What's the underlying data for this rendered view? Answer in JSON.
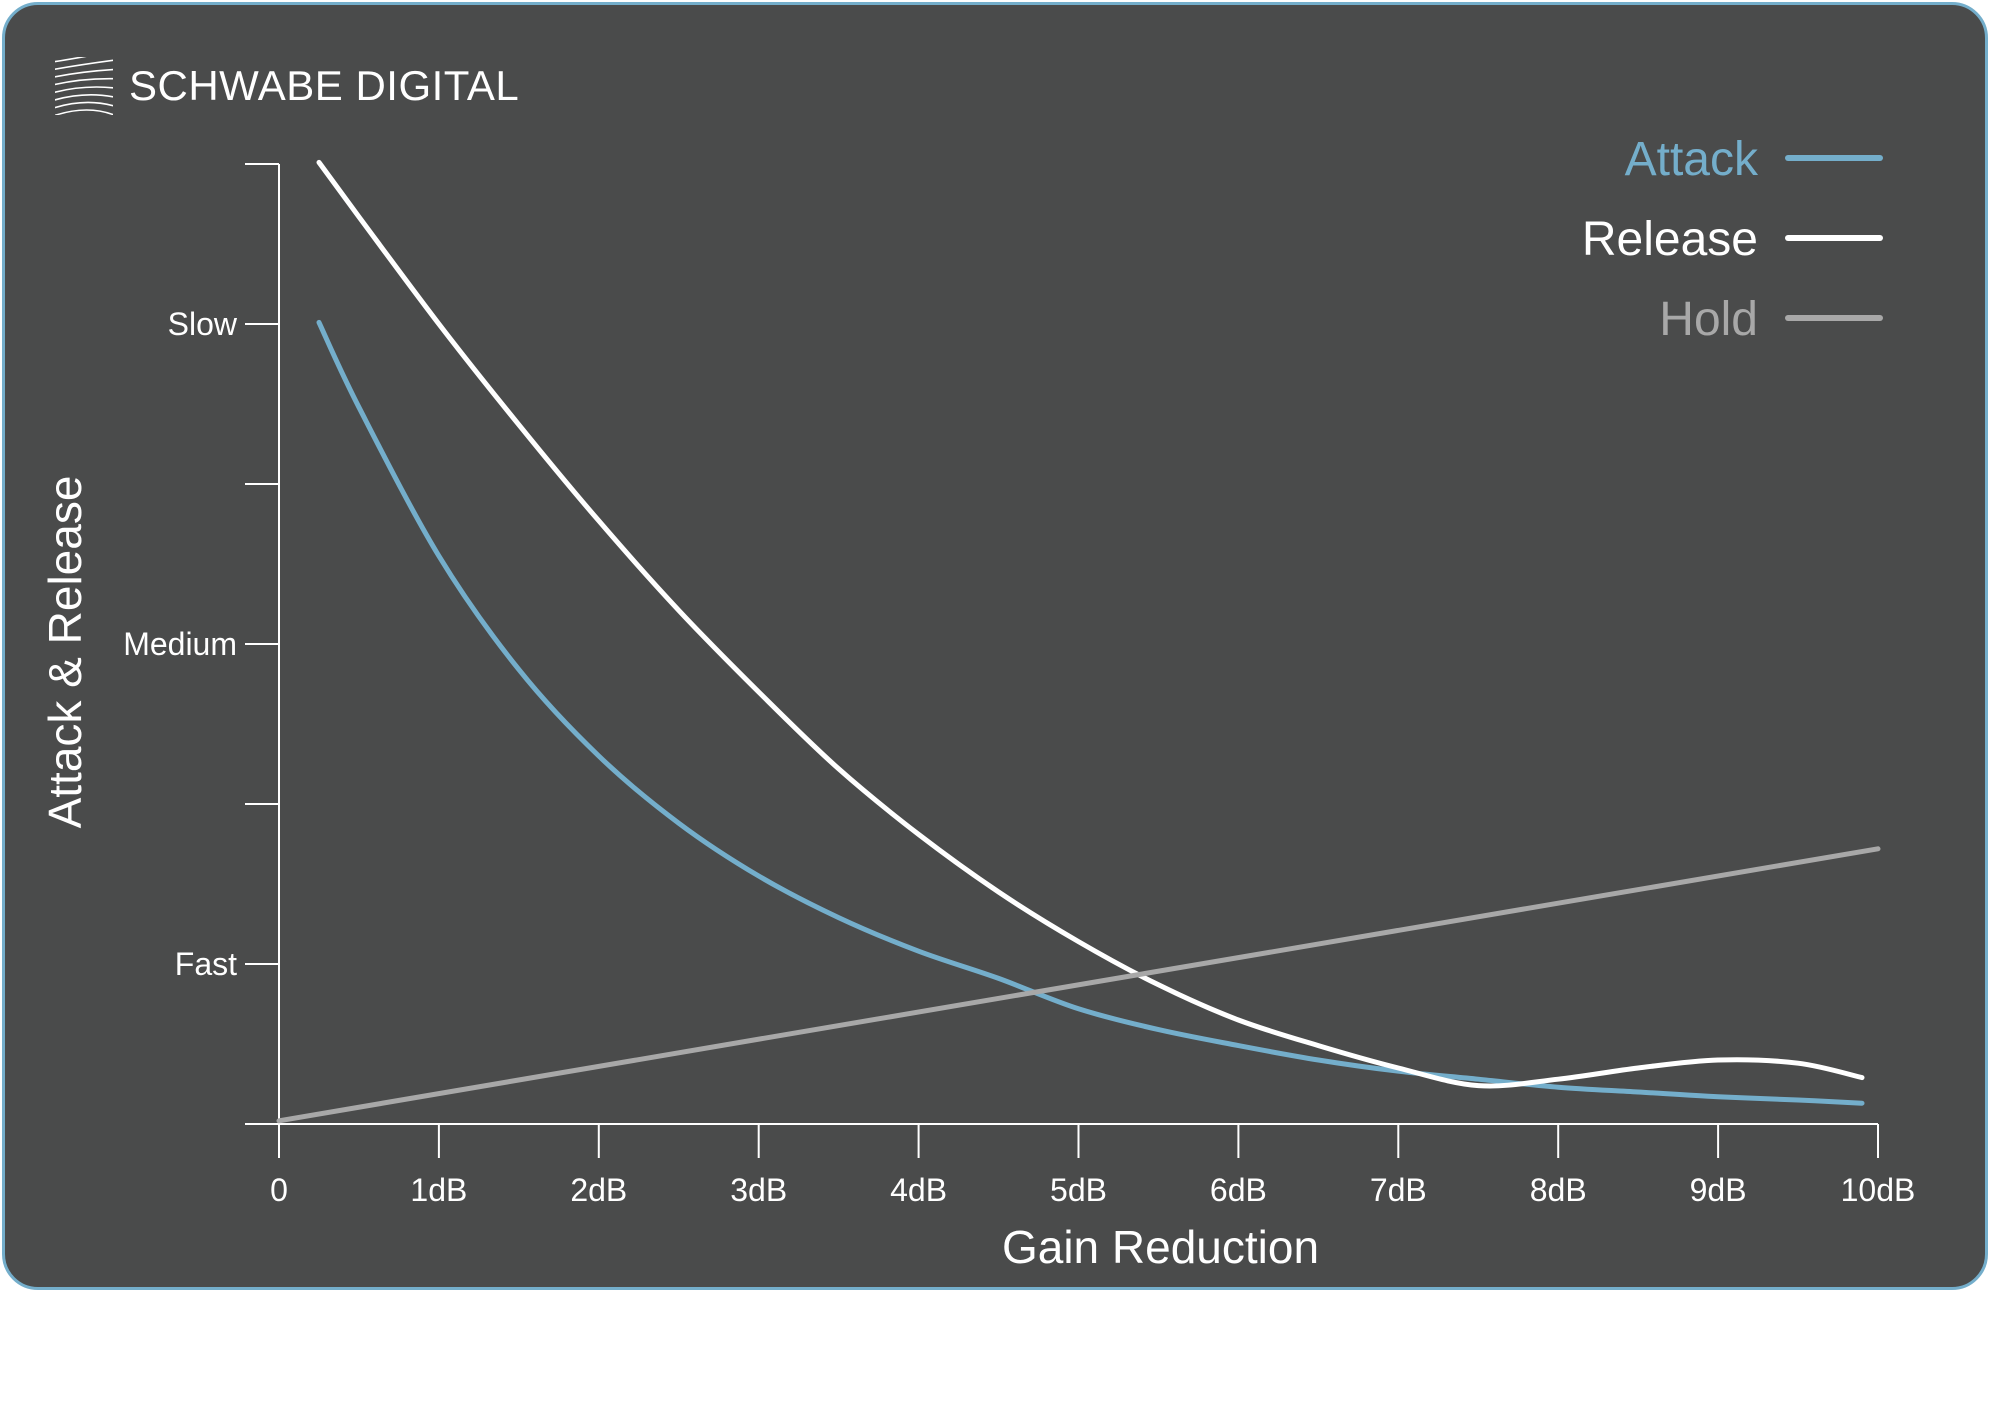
{
  "brand": {
    "name": "SCHWABE DIGITAL",
    "logo_icon": "wave-lines-logo-icon"
  },
  "colors": {
    "background": "#4a4b4b",
    "border": "#74aecb",
    "attack": "#74aecb",
    "release": "#ffffff",
    "hold": "#a8a8a8",
    "axis": "#ffffff"
  },
  "chart_data": {
    "type": "line",
    "title": "",
    "xlabel": "Gain Reduction",
    "ylabel": "Attack & Release",
    "xlim": [
      0,
      10
    ],
    "ylim": [
      0,
      6
    ],
    "x_ticks": [
      {
        "value": 0,
        "label": "0"
      },
      {
        "value": 1,
        "label": "1dB"
      },
      {
        "value": 2,
        "label": "2dB"
      },
      {
        "value": 3,
        "label": "3dB"
      },
      {
        "value": 4,
        "label": "4dB"
      },
      {
        "value": 5,
        "label": "5dB"
      },
      {
        "value": 6,
        "label": "6dB"
      },
      {
        "value": 7,
        "label": "7dB"
      },
      {
        "value": 8,
        "label": "8dB"
      },
      {
        "value": 9,
        "label": "9dB"
      },
      {
        "value": 10,
        "label": "10dB"
      }
    ],
    "y_ticks": [
      {
        "value": 0,
        "label": ""
      },
      {
        "value": 1,
        "label": "Fast"
      },
      {
        "value": 2,
        "label": ""
      },
      {
        "value": 3,
        "label": "Medium"
      },
      {
        "value": 4,
        "label": ""
      },
      {
        "value": 5,
        "label": "Slow"
      },
      {
        "value": 6,
        "label": ""
      }
    ],
    "grid": false,
    "legend_position": "top-right",
    "series": [
      {
        "name": "Attack",
        "color": "#74aecb",
        "x": [
          0.25,
          0.5,
          1,
          1.5,
          2,
          2.5,
          3,
          3.5,
          4,
          4.5,
          5,
          5.5,
          6,
          6.5,
          7,
          7.5,
          8,
          8.5,
          9,
          9.5,
          9.9
        ],
        "y": [
          5.01,
          4.48,
          3.55,
          2.84,
          2.3,
          1.88,
          1.55,
          1.29,
          1.08,
          0.91,
          0.72,
          0.59,
          0.49,
          0.4,
          0.33,
          0.28,
          0.23,
          0.2,
          0.17,
          0.15,
          0.13
        ]
      },
      {
        "name": "Release",
        "color": "#ffffff",
        "x": [
          0.25,
          0.5,
          1,
          1.5,
          2,
          2.5,
          3,
          3.5,
          4,
          4.5,
          5,
          5.5,
          6,
          6.5,
          7,
          7.5,
          8,
          8.5,
          9,
          9.5,
          9.9
        ],
        "y": [
          6.01,
          5.67,
          5.0,
          4.37,
          3.77,
          3.21,
          2.7,
          2.22,
          1.81,
          1.45,
          1.14,
          0.87,
          0.65,
          0.49,
          0.35,
          0.24,
          0.28,
          0.35,
          0.4,
          0.38,
          0.29
        ]
      },
      {
        "name": "Hold",
        "color": "#a8a8a8",
        "x": [
          0,
          10
        ],
        "y": [
          0.02,
          1.72
        ]
      }
    ]
  }
}
